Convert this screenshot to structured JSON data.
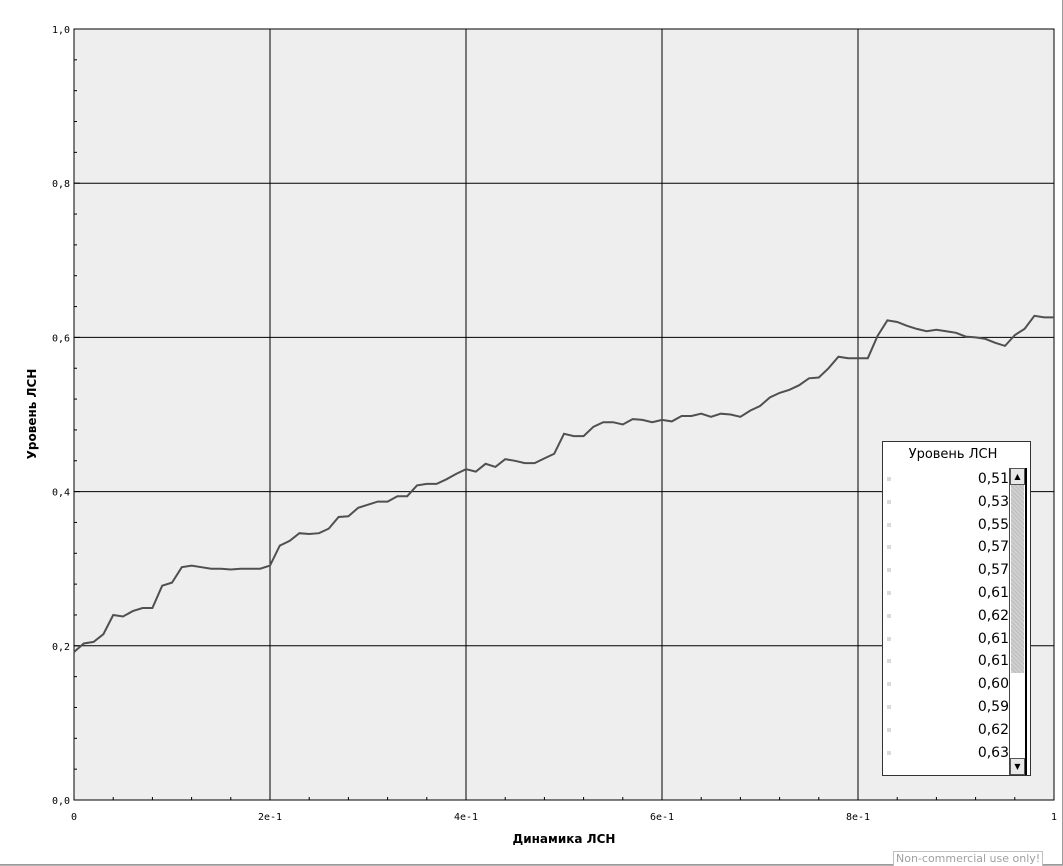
{
  "chart_data": {
    "type": "line",
    "xlabel": "Динамика ЛСН",
    "ylabel": "Уровень ЛСН",
    "xlim": [
      0,
      1
    ],
    "ylim": [
      0,
      1
    ],
    "x_ticks": [
      "0",
      "2e-1",
      "4e-1",
      "6e-1",
      "8e-1",
      "1"
    ],
    "y_ticks": [
      "0,0",
      "0,2",
      "0,4",
      "0,6",
      "0,8",
      "1,0"
    ],
    "grid": true,
    "series": [
      {
        "color": "#505050",
        "x": [
          0,
          0.01,
          0.02,
          0.03,
          0.04,
          0.05,
          0.06,
          0.07,
          0.08,
          0.09,
          0.1,
          0.11,
          0.12,
          0.13,
          0.14,
          0.15,
          0.16,
          0.17,
          0.18,
          0.19,
          0.2,
          0.21,
          0.22,
          0.23,
          0.24,
          0.25,
          0.26,
          0.27,
          0.28,
          0.29,
          0.3,
          0.31,
          0.32,
          0.33,
          0.34,
          0.35,
          0.36,
          0.37,
          0.38,
          0.39,
          0.4,
          0.41,
          0.42,
          0.43,
          0.44,
          0.45,
          0.46,
          0.47,
          0.48,
          0.49,
          0.5,
          0.51,
          0.52,
          0.53,
          0.54,
          0.55,
          0.56,
          0.57,
          0.58,
          0.59,
          0.6,
          0.61,
          0.62,
          0.63,
          0.64,
          0.65,
          0.66,
          0.67,
          0.68,
          0.69,
          0.7,
          0.71,
          0.72,
          0.73,
          0.74,
          0.75,
          0.76,
          0.77,
          0.78,
          0.79,
          0.8,
          0.81,
          0.82,
          0.83,
          0.84,
          0.85,
          0.86,
          0.87,
          0.88,
          0.89,
          0.9,
          0.91,
          0.92,
          0.93,
          0.94,
          0.95,
          0.96,
          0.97,
          0.98,
          0.99,
          1
        ],
        "y": [
          0.192,
          0.203,
          0.205,
          0.215,
          0.24,
          0.238,
          0.245,
          0.249,
          0.249,
          0.278,
          0.282,
          0.302,
          0.304,
          0.302,
          0.3,
          0.3,
          0.299,
          0.3,
          0.3,
          0.3,
          0.304,
          0.33,
          0.336,
          0.346,
          0.345,
          0.346,
          0.352,
          0.367,
          0.368,
          0.379,
          0.383,
          0.387,
          0.387,
          0.394,
          0.394,
          0.408,
          0.41,
          0.41,
          0.416,
          0.423,
          0.429,
          0.426,
          0.436,
          0.432,
          0.442,
          0.44,
          0.437,
          0.437,
          0.443,
          0.449,
          0.475,
          0.472,
          0.472,
          0.484,
          0.49,
          0.49,
          0.487,
          0.494,
          0.493,
          0.49,
          0.493,
          0.491,
          0.498,
          0.498,
          0.501,
          0.497,
          0.501,
          0.5,
          0.497,
          0.505,
          0.511,
          0.522,
          0.528,
          0.532,
          0.538,
          0.547,
          0.548,
          0.56,
          0.575,
          0.573,
          0.573,
          0.573,
          0.602,
          0.622,
          0.62,
          0.615,
          0.611,
          0.608,
          0.61,
          0.608,
          0.606,
          0.601,
          0.6,
          0.598,
          0.593,
          0.589,
          0.603,
          0.611,
          0.628,
          0.626,
          0.626
        ]
      }
    ]
  },
  "legend": {
    "title": "Уровень ЛСН",
    "values": [
      "0,51",
      "0,53",
      "0,55",
      "0,57",
      "0,57",
      "0,61",
      "0,62",
      "0,61",
      "0,61",
      "0,60",
      "0,59",
      "0,62",
      "0,63"
    ]
  },
  "icons": {
    "scroll_up": "▲",
    "scroll_down": "▼"
  },
  "watermark": "Non-commercial use only!"
}
